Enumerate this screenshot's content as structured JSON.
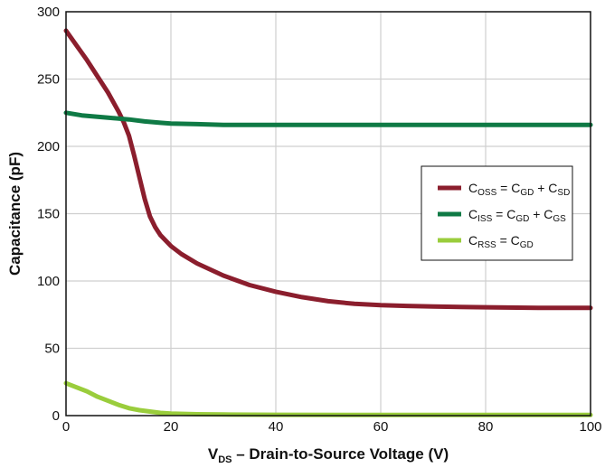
{
  "chart_data": {
    "type": "line",
    "xlabel": {
      "main": "V",
      "sub": "DS",
      "rest": " – Drain-to-Source Voltage (V)"
    },
    "ylabel": "Capacitance (pF)",
    "xlim": [
      0,
      100
    ],
    "ylim": [
      0,
      300
    ],
    "x_ticks": [
      0,
      20,
      40,
      60,
      80,
      100
    ],
    "y_ticks": [
      0,
      50,
      100,
      150,
      200,
      250,
      300
    ],
    "grid": true,
    "legend_position": "right-middle",
    "series": [
      {
        "name": "C_OSS = C_GD + C_SD",
        "legend": [
          {
            "t": "C"
          },
          {
            "t": "OSS",
            "s": true
          },
          {
            "t": " = C"
          },
          {
            "t": "GD",
            "s": true
          },
          {
            "t": " + C"
          },
          {
            "t": "SD",
            "s": true
          }
        ],
        "color": "#8B1E2D",
        "x": [
          0,
          2,
          4,
          6,
          8,
          10,
          11,
          12,
          13,
          14,
          15,
          16,
          17,
          18,
          20,
          22,
          25,
          30,
          35,
          40,
          45,
          50,
          55,
          60,
          65,
          70,
          80,
          90,
          100
        ],
        "y": [
          286,
          275,
          264,
          252,
          240,
          226,
          218,
          208,
          193,
          177,
          161,
          148,
          140,
          134,
          126,
          120,
          113,
          104,
          97,
          92,
          88,
          85,
          83,
          82,
          81.5,
          81,
          80.5,
          80,
          80
        ]
      },
      {
        "name": "C_ISS = C_GD + C_GS",
        "legend": [
          {
            "t": "C"
          },
          {
            "t": "ISS",
            "s": true
          },
          {
            "t": " = C"
          },
          {
            "t": "GD",
            "s": true
          },
          {
            "t": " + C"
          },
          {
            "t": "GS",
            "s": true
          }
        ],
        "color": "#0F7A45",
        "x": [
          0,
          3,
          6,
          9,
          12,
          15,
          18,
          20,
          25,
          30,
          40,
          50,
          60,
          70,
          80,
          90,
          100
        ],
        "y": [
          225,
          223,
          222,
          221,
          220,
          218.5,
          217.5,
          217,
          216.5,
          216,
          216,
          216,
          216,
          216,
          216,
          216,
          216
        ]
      },
      {
        "name": "C_RSS = C_GD",
        "legend": [
          {
            "t": "C"
          },
          {
            "t": "RSS",
            "s": true
          },
          {
            "t": " = C"
          },
          {
            "t": "GD",
            "s": true
          }
        ],
        "color": "#9ACD3C",
        "x": [
          0,
          2,
          4,
          6,
          8,
          10,
          12,
          14,
          16,
          18,
          20,
          25,
          30,
          40,
          60,
          80,
          100
        ],
        "y": [
          24,
          21,
          18,
          14,
          11,
          8,
          5.5,
          4,
          3,
          2,
          1.5,
          1,
          0.8,
          0.6,
          0.5,
          0.5,
          0.5
        ]
      }
    ]
  }
}
